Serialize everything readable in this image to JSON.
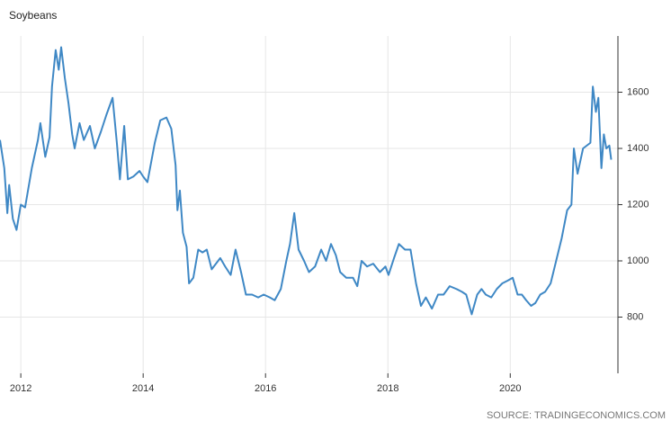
{
  "chart_data": {
    "type": "line",
    "title": "Soybeans",
    "source": "SOURCE: TRADINGECONOMICS.COM",
    "color": "#3f88c5",
    "grid": true,
    "y_axis_side": "right",
    "xlim": [
      2011.66,
      2021.76
    ],
    "xticks": [
      2012,
      2014,
      2016,
      2018,
      2020
    ],
    "ylim": [
      600,
      1800
    ],
    "yticks": [
      800,
      1000,
      1200,
      1400,
      1600
    ],
    "x": [
      2011.66,
      2011.73,
      2011.78,
      2011.81,
      2011.87,
      2011.93,
      2012.0,
      2012.07,
      2012.18,
      2012.28,
      2012.32,
      2012.4,
      2012.47,
      2012.51,
      2012.57,
      2012.62,
      2012.66,
      2012.72,
      2012.78,
      2012.84,
      2012.88,
      2012.96,
      2013.03,
      2013.13,
      2013.21,
      2013.31,
      2013.4,
      2013.5,
      2013.57,
      2013.62,
      2013.69,
      2013.75,
      2013.84,
      2013.94,
      2014.0,
      2014.07,
      2014.19,
      2014.28,
      2014.38,
      2014.46,
      2014.53,
      2014.56,
      2014.6,
      2014.65,
      2014.71,
      2014.75,
      2014.82,
      2014.9,
      2014.97,
      2015.04,
      2015.12,
      2015.19,
      2015.26,
      2015.34,
      2015.43,
      2015.51,
      2015.6,
      2015.68,
      2015.78,
      2015.88,
      2015.97,
      2016.07,
      2016.15,
      2016.25,
      2016.34,
      2016.4,
      2016.47,
      2016.54,
      2016.63,
      2016.71,
      2016.81,
      2016.91,
      2016.99,
      2017.07,
      2017.15,
      2017.22,
      2017.32,
      2017.43,
      2017.5,
      2017.57,
      2017.66,
      2017.76,
      2017.87,
      2017.96,
      2018.01,
      2018.1,
      2018.18,
      2018.28,
      2018.37,
      2018.46,
      2018.54,
      2018.62,
      2018.72,
      2018.82,
      2018.91,
      2019.01,
      2019.12,
      2019.21,
      2019.28,
      2019.37,
      2019.46,
      2019.53,
      2019.6,
      2019.69,
      2019.78,
      2019.87,
      2019.96,
      2020.04,
      2020.12,
      2020.19,
      2020.26,
      2020.34,
      2020.41,
      2020.49,
      2020.57,
      2020.66,
      2020.75,
      2020.84,
      2020.93,
      2021.0,
      2021.04,
      2021.1,
      2021.19,
      2021.25,
      2021.31,
      2021.35,
      2021.4,
      2021.44,
      2021.49,
      2021.53,
      2021.57,
      2021.62,
      2021.65
    ],
    "values": [
      1430,
      1330,
      1170,
      1270,
      1150,
      1110,
      1200,
      1190,
      1330,
      1430,
      1490,
      1370,
      1440,
      1620,
      1750,
      1680,
      1760,
      1650,
      1560,
      1450,
      1400,
      1490,
      1430,
      1480,
      1400,
      1460,
      1520,
      1580,
      1420,
      1290,
      1480,
      1290,
      1300,
      1320,
      1300,
      1280,
      1420,
      1500,
      1510,
      1470,
      1340,
      1180,
      1250,
      1100,
      1050,
      920,
      940,
      1040,
      1030,
      1040,
      970,
      990,
      1010,
      980,
      950,
      1040,
      960,
      880,
      880,
      870,
      880,
      870,
      860,
      900,
      1000,
      1060,
      1170,
      1040,
      1000,
      960,
      980,
      1040,
      1000,
      1060,
      1020,
      960,
      940,
      940,
      910,
      1000,
      980,
      990,
      960,
      980,
      950,
      1010,
      1060,
      1040,
      1040,
      920,
      840,
      870,
      830,
      880,
      880,
      910,
      900,
      890,
      880,
      810,
      880,
      900,
      880,
      870,
      900,
      920,
      930,
      940,
      880,
      880,
      860,
      840,
      850,
      880,
      890,
      920,
      1000,
      1080,
      1180,
      1200,
      1400,
      1310,
      1400,
      1410,
      1420,
      1620,
      1530,
      1580,
      1330,
      1450,
      1400,
      1410,
      1360
    ]
  }
}
